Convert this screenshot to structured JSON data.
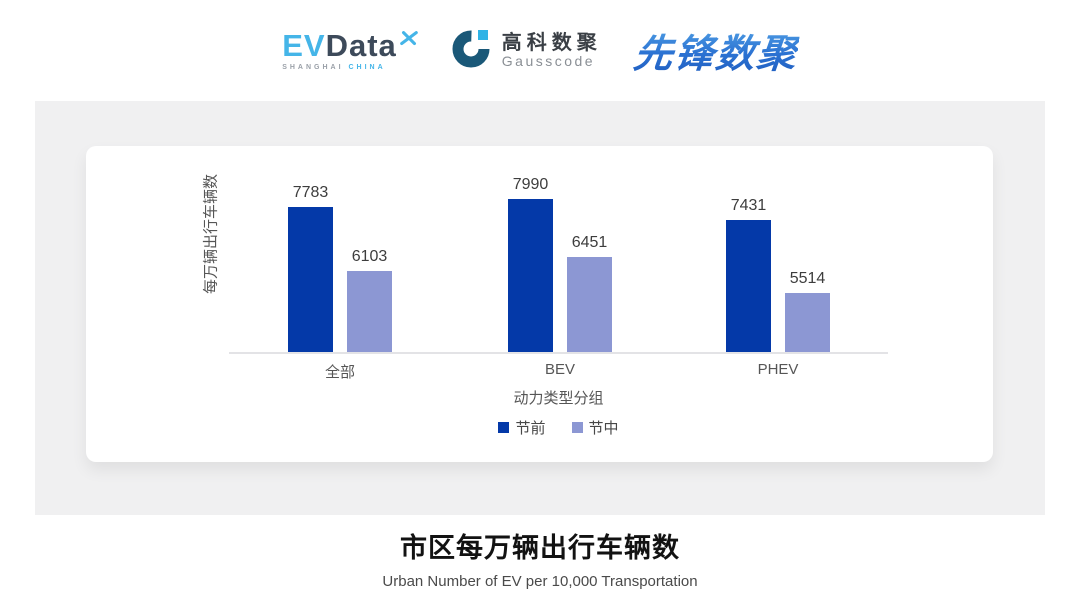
{
  "header": {
    "evdata": {
      "ev": "EV",
      "data": "Data",
      "sub_left": "SHANGHAI",
      "sub_right": "CHINA"
    },
    "gausscode": {
      "cn": "高科数聚",
      "en": "Gausscode"
    },
    "pioneer": "先锋数聚"
  },
  "chart_data": {
    "type": "bar",
    "title": "市区每万辆出行车辆数",
    "subtitle": "Urban Number of EV per 10,000 Transportation",
    "categories": [
      "全部",
      "BEV",
      "PHEV"
    ],
    "series": [
      {
        "name": "节前",
        "color": "#0439A8",
        "values": [
          7783,
          7990,
          7431
        ]
      },
      {
        "name": "节中",
        "color": "#8C97D3",
        "values": [
          6103,
          6451,
          5514
        ]
      }
    ],
    "xlabel": "动力类型分组",
    "ylabel": "每万辆出行车辆数",
    "ylim": [
      3970,
      9220
    ],
    "grid": false,
    "legend_position": "bottom",
    "value_labels": true
  },
  "colors": {
    "panel_background": "#F0F0F1",
    "card_background": "#FFFFFF",
    "axis_line": "#E3E3E6",
    "evdata_blue": "#45B5E8",
    "evdata_slate": "#3D4A5A",
    "gausscode_dark": "#1A5878",
    "gausscode_light": "#2FB3E6",
    "pioneer_blue": "#2B72D2"
  }
}
